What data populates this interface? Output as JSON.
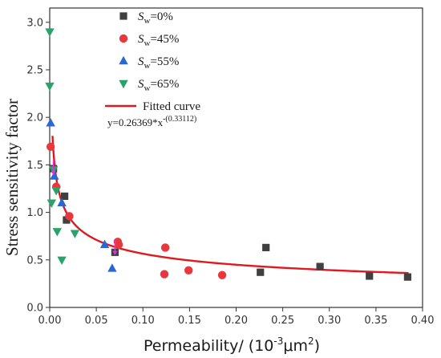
{
  "chart_data": {
    "type": "scatter",
    "title": "",
    "xlabel_prefix": "Permeability/ (10",
    "xlabel_exp": "-3",
    "xlabel_unit": "μm",
    "xlabel_unit_exp": "2",
    "xlabel_suffix": ")",
    "ylabel": "Stress sensitivity factor",
    "xlim": [
      0.0,
      0.4
    ],
    "ylim": [
      0.0,
      3.15
    ],
    "x_ticks": [
      "0.00",
      "0.05",
      "0.10",
      "0.15",
      "0.20",
      "0.25",
      "0.30",
      "0.35",
      "0.40"
    ],
    "y_ticks": [
      "0.0",
      "0.5",
      "1.0",
      "1.5",
      "2.0",
      "2.5",
      "3.0"
    ],
    "legend_position": "top-center",
    "series": [
      {
        "name_main": "S",
        "name_sub": "w",
        "name_rest": "=0%",
        "marker": "square",
        "color": "#404040",
        "points": [
          [
            0.004,
            1.46
          ],
          [
            0.016,
            1.17
          ],
          [
            0.018,
            0.92
          ],
          [
            0.07,
            0.58
          ],
          [
            0.226,
            0.37
          ],
          [
            0.232,
            0.63
          ],
          [
            0.29,
            0.43
          ],
          [
            0.343,
            0.33
          ],
          [
            0.384,
            0.32
          ]
        ]
      },
      {
        "name_main": "S",
        "name_sub": "w",
        "name_rest": "=45%",
        "marker": "circle",
        "color": "#e8383d",
        "points": [
          [
            0.001,
            1.69
          ],
          [
            0.007,
            1.27
          ],
          [
            0.021,
            0.96
          ],
          [
            0.073,
            0.69
          ],
          [
            0.074,
            0.66
          ],
          [
            0.123,
            0.35
          ],
          [
            0.124,
            0.63
          ],
          [
            0.149,
            0.39
          ],
          [
            0.185,
            0.34
          ]
        ]
      },
      {
        "name_main": "S",
        "name_sub": "w",
        "name_rest": "=55%",
        "marker": "triangle-up",
        "color": "#2a66d6",
        "points": [
          [
            0.001,
            1.94
          ],
          [
            0.005,
            1.38
          ],
          [
            0.013,
            1.1
          ],
          [
            0.059,
            0.66
          ],
          [
            0.067,
            0.41
          ]
        ]
      },
      {
        "name_main": "S",
        "name_sub": "w",
        "name_rest": "=65%",
        "marker": "triangle-down",
        "color": "#2aa36b",
        "points": [
          [
            0.0,
            2.9
          ],
          [
            0.0,
            2.33
          ],
          [
            0.002,
            1.1
          ],
          [
            0.004,
            1.45
          ],
          [
            0.007,
            1.23
          ],
          [
            0.008,
            0.8
          ],
          [
            0.013,
            0.5
          ],
          [
            0.027,
            0.78
          ]
        ]
      }
    ],
    "fitted_curve": {
      "name": "Fitted curve",
      "color": "#e0191f",
      "a": 0.26369,
      "b": -0.33112,
      "x_range": [
        0.003,
        0.385
      ]
    },
    "equation_prefix": "y=0.26369*x",
    "equation_exp": "-(0.33112)"
  }
}
